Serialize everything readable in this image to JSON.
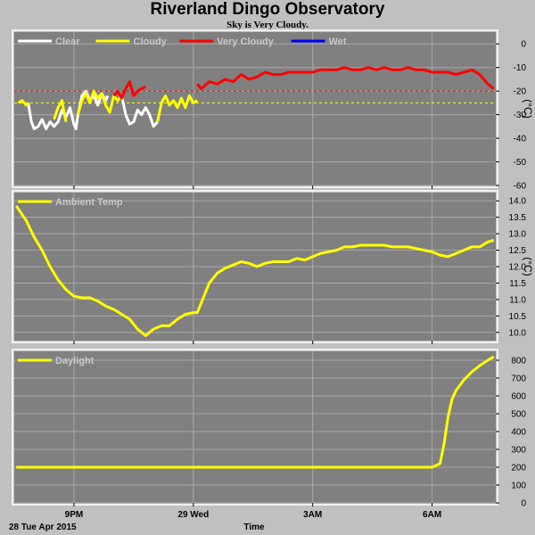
{
  "title": "Riverland Dingo Observatory",
  "subtitle": "Sky is Very Cloudy.",
  "xaxis": {
    "label": "Time",
    "date_label": "28 Tue Apr 2015",
    "ticks": [
      {
        "label": "9PM",
        "hour": 21
      },
      {
        "label": "29 Wed",
        "hour": 24
      },
      {
        "label": "3AM",
        "hour": 27
      },
      {
        "label": "6AM",
        "hour": 30
      }
    ],
    "start_hour": 19.5,
    "end_hour": 31.6
  },
  "colors": {
    "plot_bg": "#808080",
    "page_bg": "#c0c0c0",
    "grid": "#a8a8a8"
  },
  "chart_data": [
    {
      "type": "line",
      "id": "sky",
      "legend": [
        {
          "name": "Clear",
          "color": "#ffffff"
        },
        {
          "name": "Cloudy",
          "color": "#ffff00"
        },
        {
          "name": "Very Cloudy",
          "color": "#ff0000"
        },
        {
          "name": "Wet",
          "color": "#0000ff"
        }
      ],
      "ylabel": "(°C)",
      "ylim": [
        -60,
        5
      ],
      "yticks": [
        0,
        -10,
        -20,
        -30,
        -40,
        -50,
        -60
      ],
      "thresholds": [
        {
          "value": -20,
          "color": "#ff0000"
        },
        {
          "value": -25,
          "color": "#ffff00"
        }
      ],
      "series": [
        {
          "name": "Clear",
          "x": [
            19.85,
            19.93,
            20.0,
            20.1,
            20.2,
            20.3,
            20.4,
            20.5,
            20.6,
            20.7,
            20.8,
            20.9,
            21.0,
            21.05,
            21.1,
            21.2,
            21.3,
            21.4,
            21.5,
            21.6,
            21.7,
            21.8,
            21.85
          ],
          "y": [
            -25,
            -33,
            -36,
            -35,
            -32,
            -36,
            -33,
            -35,
            -33,
            -28,
            -31,
            -27,
            -34,
            -36,
            -30,
            -22,
            -20,
            -24,
            -22,
            -26,
            -21,
            -24,
            -22
          ]
        },
        {
          "name": "Clear",
          "x": [
            22.2,
            22.3,
            22.4,
            22.5,
            22.6,
            22.7,
            22.8,
            22.9,
            23.0,
            23.1
          ],
          "y": [
            -22,
            -30,
            -34,
            -33,
            -28,
            -30,
            -27,
            -30,
            -35,
            -33
          ]
        },
        {
          "name": "Cloudy",
          "x": [
            19.6,
            19.7,
            19.8,
            19.85
          ],
          "y": [
            -25,
            -24,
            -26,
            -25
          ]
        },
        {
          "name": "Cloudy",
          "x": [
            20.5,
            20.6,
            20.7,
            20.75,
            20.8
          ],
          "y": [
            -32,
            -27,
            -24,
            -29,
            -33
          ]
        },
        {
          "name": "Cloudy",
          "x": [
            21.1,
            21.2,
            21.3,
            21.4,
            21.5,
            21.6,
            21.7,
            21.8,
            21.9,
            22.0,
            22.1,
            22.2
          ],
          "y": [
            -30,
            -24,
            -21,
            -25,
            -20,
            -23,
            -21,
            -26,
            -29,
            -22,
            -24,
            -22
          ]
        },
        {
          "name": "Cloudy",
          "x": [
            23.1,
            23.2,
            23.3,
            23.4,
            23.5,
            23.6,
            23.7,
            23.8,
            23.9,
            24.0,
            24.1
          ],
          "y": [
            -33,
            -25,
            -22,
            -26,
            -24,
            -27,
            -23,
            -27,
            -22,
            -25,
            -24
          ]
        },
        {
          "name": "Very Cloudy",
          "x": [
            22.0,
            22.1,
            22.2,
            22.3,
            22.4,
            22.5,
            22.6,
            22.7,
            22.8
          ],
          "y": [
            -22,
            -20,
            -23,
            -19,
            -16,
            -22,
            -20,
            -19,
            -18
          ]
        },
        {
          "name": "Very Cloudy",
          "x": [
            24.1,
            24.2,
            24.4,
            24.6,
            24.8,
            25.0,
            25.2,
            25.4,
            25.6,
            25.8,
            26.0,
            26.2,
            26.4,
            26.6,
            26.8,
            27.0,
            27.2,
            27.4,
            27.6,
            27.8,
            28.0,
            28.2,
            28.4,
            28.6,
            28.8,
            29.0,
            29.2,
            29.4,
            29.6,
            29.8,
            30.0,
            30.2,
            30.4,
            30.6,
            30.8,
            31.0,
            31.2,
            31.4,
            31.55
          ],
          "y": [
            -17,
            -19,
            -16,
            -17,
            -15,
            -16,
            -13,
            -15,
            -14,
            -12,
            -13,
            -13,
            -12,
            -12,
            -12,
            -12,
            -11,
            -11,
            -11,
            -10,
            -11,
            -11,
            -10,
            -11,
            -10,
            -11,
            -11,
            -10,
            -11,
            -11,
            -12,
            -12,
            -12,
            -13,
            -12,
            -11,
            -13,
            -17,
            -19
          ]
        }
      ]
    },
    {
      "type": "line",
      "id": "ambient",
      "legend": [
        {
          "name": "Ambient Temp",
          "color": "#ffff00"
        }
      ],
      "ylabel": "(°C)",
      "ylim": [
        9.75,
        14.25
      ],
      "yticks": [
        14.0,
        13.5,
        13.0,
        12.5,
        12.0,
        11.5,
        11.0,
        10.5,
        10.0
      ],
      "series": [
        {
          "name": "Ambient Temp",
          "x": [
            19.55,
            19.8,
            20.0,
            20.2,
            20.4,
            20.6,
            20.8,
            21.0,
            21.2,
            21.4,
            21.6,
            21.8,
            22.0,
            22.2,
            22.4,
            22.6,
            22.8,
            23.0,
            23.2,
            23.4,
            23.6,
            23.8,
            24.0,
            24.1,
            24.2,
            24.4,
            24.6,
            24.8,
            25.0,
            25.2,
            25.4,
            25.6,
            25.8,
            26.0,
            26.2,
            26.4,
            26.6,
            26.8,
            27.0,
            27.2,
            27.4,
            27.6,
            27.8,
            28.0,
            28.2,
            28.4,
            28.6,
            28.8,
            29.0,
            29.2,
            29.4,
            29.6,
            29.8,
            30.0,
            30.2,
            30.4,
            30.6,
            30.8,
            31.0,
            31.2,
            31.4,
            31.55
          ],
          "y": [
            13.85,
            13.4,
            12.9,
            12.5,
            12.0,
            11.6,
            11.3,
            11.1,
            11.05,
            11.05,
            10.95,
            10.8,
            10.7,
            10.55,
            10.4,
            10.1,
            9.9,
            10.1,
            10.2,
            10.2,
            10.4,
            10.55,
            10.6,
            10.6,
            10.9,
            11.5,
            11.8,
            11.95,
            12.05,
            12.15,
            12.1,
            12.0,
            12.1,
            12.15,
            12.15,
            12.15,
            12.25,
            12.2,
            12.3,
            12.4,
            12.45,
            12.5,
            12.6,
            12.6,
            12.65,
            12.65,
            12.65,
            12.65,
            12.6,
            12.6,
            12.6,
            12.55,
            12.5,
            12.45,
            12.35,
            12.3,
            12.4,
            12.5,
            12.6,
            12.6,
            12.75,
            12.8
          ]
        }
      ]
    },
    {
      "type": "line",
      "id": "daylight",
      "legend": [
        {
          "name": "Daylight",
          "color": "#ffff00"
        }
      ],
      "ylabel": "",
      "ylim": [
        0,
        850
      ],
      "yticks": [
        800,
        700,
        600,
        500,
        400,
        300,
        200,
        100,
        0
      ],
      "series": [
        {
          "name": "Daylight",
          "x": [
            19.55,
            20.5,
            21.5,
            22.5,
            23.5,
            24.5,
            25.5,
            26.5,
            27.5,
            28.5,
            29.5,
            30.0,
            30.2,
            30.3,
            30.4,
            30.5,
            30.6,
            30.8,
            31.0,
            31.2,
            31.4,
            31.55
          ],
          "y": [
            200,
            200,
            200,
            200,
            200,
            200,
            200,
            200,
            200,
            200,
            200,
            200,
            220,
            330,
            480,
            580,
            630,
            690,
            735,
            770,
            800,
            820
          ]
        }
      ]
    }
  ]
}
